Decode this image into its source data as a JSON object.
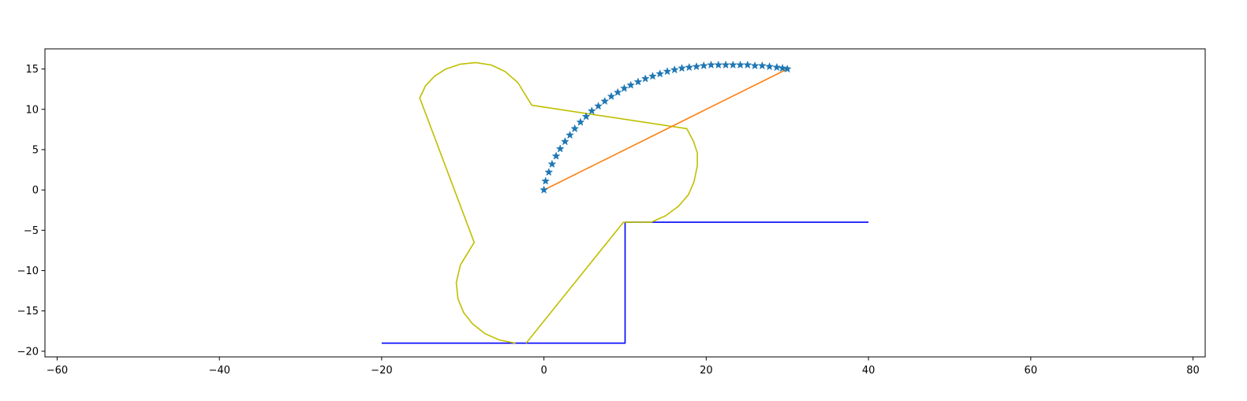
{
  "chart_data": {
    "type": "line",
    "title": "",
    "xlabel": "",
    "ylabel": "",
    "xlim": [
      -61.5,
      81.5
    ],
    "ylim": [
      -20.7,
      17.5
    ],
    "grid": false,
    "xticks": [
      -60,
      -40,
      -20,
      0,
      20,
      40,
      60,
      80
    ],
    "yticks": [
      -20,
      -15,
      -10,
      -5,
      0,
      5,
      10,
      15
    ],
    "xtick_labels": [
      "−60",
      "−40",
      "−20",
      "0",
      "20",
      "40",
      "60",
      "80"
    ],
    "ytick_labels": [
      "−20",
      "−15",
      "−10",
      "−5",
      "0",
      "5",
      "10",
      "15"
    ],
    "series": [
      {
        "kind": "line",
        "color": "#0000ff",
        "points": [
          [
            -20,
            -19
          ],
          [
            10,
            -19
          ],
          [
            10,
            -4
          ],
          [
            40,
            -4
          ]
        ]
      },
      {
        "kind": "line",
        "color": "#bfbf00",
        "points": [
          [
            -3.5,
            -19
          ],
          [
            -5.5,
            -18.6
          ],
          [
            -7.3,
            -17.8
          ],
          [
            -8.8,
            -16.6
          ],
          [
            -9.9,
            -15.2
          ],
          [
            -10.6,
            -13.5
          ],
          [
            -10.8,
            -11.5
          ],
          [
            -10.3,
            -9.3
          ],
          [
            -8.6,
            -6.5
          ],
          [
            -15.3,
            11.4
          ],
          [
            -14.6,
            12.9
          ],
          [
            -13.5,
            14.1
          ],
          [
            -12.1,
            15.0
          ],
          [
            -10.3,
            15.6
          ],
          [
            -8.4,
            15.8
          ],
          [
            -6.5,
            15.5
          ],
          [
            -4.8,
            14.7
          ],
          [
            -3.2,
            13.3
          ],
          [
            -1.5,
            10.5
          ],
          [
            17.6,
            7.6
          ],
          [
            18.4,
            6.1
          ],
          [
            18.9,
            4.6
          ],
          [
            18.9,
            3.0
          ],
          [
            18.5,
            1.0
          ],
          [
            17.8,
            -0.6
          ],
          [
            16.6,
            -2.0
          ],
          [
            15.0,
            -3.2
          ],
          [
            13.2,
            -4.0
          ],
          [
            9.8,
            -4.0
          ],
          [
            -2.2,
            -19
          ]
        ]
      },
      {
        "kind": "line",
        "color": "#ff7f0e",
        "points": [
          [
            0,
            0
          ],
          [
            30,
            15
          ]
        ]
      },
      {
        "kind": "markers",
        "marker": "star",
        "color": "#1f77b4",
        "points": [
          [
            0.0,
            0.0
          ],
          [
            0.2,
            1.1
          ],
          [
            0.6,
            2.2
          ],
          [
            1.0,
            3.2
          ],
          [
            1.5,
            4.2
          ],
          [
            2.0,
            5.1
          ],
          [
            2.6,
            6.0
          ],
          [
            3.2,
            6.8
          ],
          [
            3.8,
            7.6
          ],
          [
            4.5,
            8.4
          ],
          [
            5.2,
            9.1
          ],
          [
            5.9,
            9.8
          ],
          [
            6.7,
            10.4
          ],
          [
            7.5,
            11.0
          ],
          [
            8.3,
            11.6
          ],
          [
            9.1,
            12.1
          ],
          [
            9.9,
            12.6
          ],
          [
            10.7,
            13.0
          ],
          [
            11.6,
            13.4
          ],
          [
            12.5,
            13.8
          ],
          [
            13.4,
            14.1
          ],
          [
            14.3,
            14.4
          ],
          [
            15.2,
            14.7
          ],
          [
            16.1,
            14.9
          ],
          [
            17.0,
            15.1
          ],
          [
            17.9,
            15.2
          ],
          [
            18.8,
            15.3
          ],
          [
            19.7,
            15.4
          ],
          [
            20.6,
            15.5
          ],
          [
            21.5,
            15.5
          ],
          [
            22.4,
            15.5
          ],
          [
            23.3,
            15.5
          ],
          [
            24.2,
            15.5
          ],
          [
            25.1,
            15.5
          ],
          [
            26.0,
            15.4
          ],
          [
            26.9,
            15.4
          ],
          [
            27.8,
            15.3
          ],
          [
            28.7,
            15.2
          ],
          [
            29.4,
            15.1
          ],
          [
            30.0,
            15.0
          ]
        ]
      }
    ]
  }
}
